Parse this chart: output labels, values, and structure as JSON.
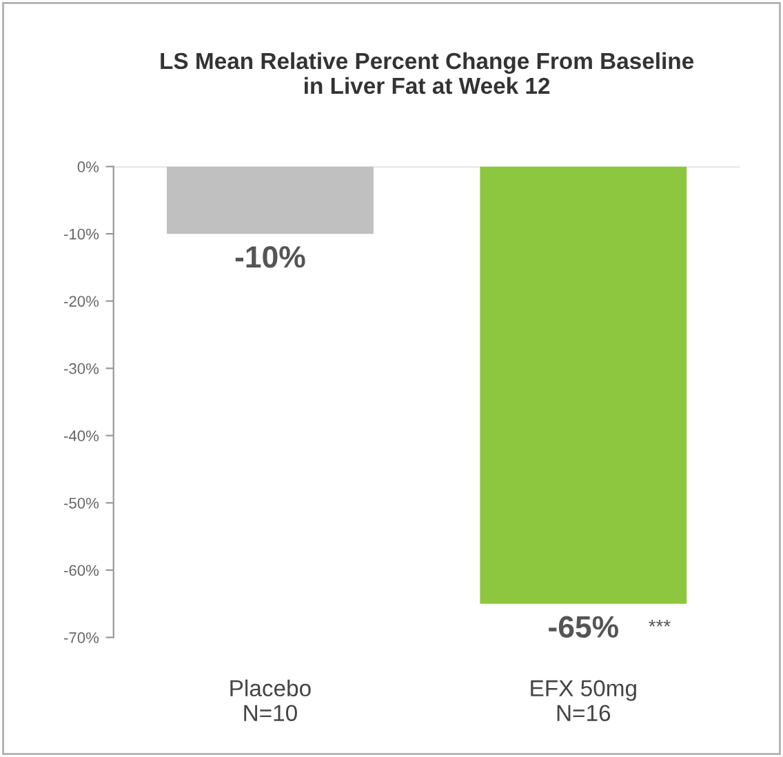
{
  "chart_data": {
    "type": "bar",
    "title": "LS Mean Relative Percent Change From Baseline\nin Liver Fat at Week 12",
    "categories": [
      "Placebo\nN=10",
      "EFX 50mg\nN=16"
    ],
    "values": [
      -10,
      -65
    ],
    "colors": [
      "#c0c0c0",
      "#8dc63f"
    ],
    "value_labels": [
      "-10%",
      "-65%"
    ],
    "annotations": [
      "***"
    ],
    "ylim": [
      -70,
      0
    ],
    "yticks": [
      {
        "value": 0,
        "label": "0%"
      },
      {
        "value": -10,
        "label": "-10%"
      },
      {
        "value": -20,
        "label": "-20%"
      },
      {
        "value": -30,
        "label": "-30%"
      },
      {
        "value": -40,
        "label": "-40%"
      },
      {
        "value": -50,
        "label": "-50%"
      },
      {
        "value": -60,
        "label": "-60%"
      },
      {
        "value": -70,
        "label": "-70%"
      }
    ],
    "grid": false,
    "legend": false
  }
}
